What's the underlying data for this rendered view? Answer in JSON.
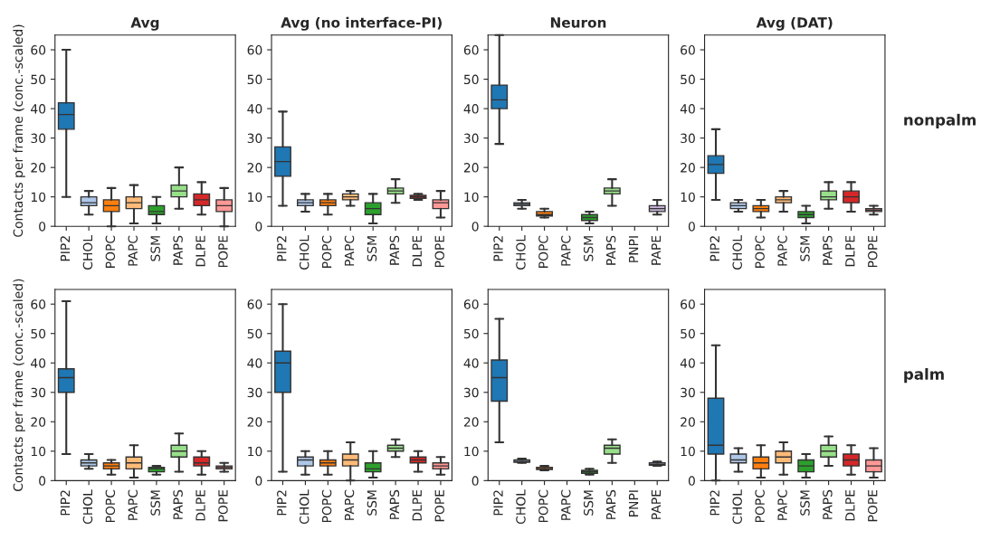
{
  "chart_data": [
    {
      "type": "box",
      "title": "Avg",
      "ylabel": "Contacts per frame (conc.-scaled)",
      "categories": [
        "PIP2",
        "CHOL",
        "POPC",
        "PAPC",
        "SSM",
        "PAPS",
        "DLPE",
        "POPE"
      ],
      "colors": [
        "#1f77b4",
        "#aec7e8",
        "#ff7f0e",
        "#ffbb78",
        "#2ca02c",
        "#98df8a",
        "#d62728",
        "#ff9896"
      ],
      "ylim": [
        0,
        65
      ],
      "yticks": [
        0,
        10,
        20,
        30,
        40,
        50,
        60
      ],
      "boxes": [
        {
          "low": 10,
          "q1": 33,
          "median": 38,
          "q3": 42,
          "high": 60
        },
        {
          "low": 4,
          "q1": 7,
          "median": 8,
          "q3": 10,
          "high": 12
        },
        {
          "low": 0,
          "q1": 5,
          "median": 7,
          "q3": 9,
          "high": 13
        },
        {
          "low": 1,
          "q1": 6,
          "median": 8,
          "q3": 10,
          "high": 14
        },
        {
          "low": 1,
          "q1": 4,
          "median": 5,
          "q3": 7,
          "high": 10
        },
        {
          "low": 6,
          "q1": 10,
          "median": 12,
          "q3": 14,
          "high": 20
        },
        {
          "low": 4,
          "q1": 7,
          "median": 9,
          "q3": 11,
          "high": 15
        },
        {
          "low": 0,
          "q1": 5,
          "median": 7,
          "q3": 9,
          "high": 13
        }
      ]
    },
    {
      "type": "box",
      "title": "Avg (no interface-PI)",
      "categories": [
        "PIP2",
        "CHOL",
        "POPC",
        "PAPC",
        "SSM",
        "PAPS",
        "DLPE",
        "POPE"
      ],
      "colors": [
        "#1f77b4",
        "#aec7e8",
        "#ff7f0e",
        "#ffbb78",
        "#2ca02c",
        "#98df8a",
        "#d62728",
        "#ff9896"
      ],
      "ylim": [
        0,
        65
      ],
      "yticks": [
        0,
        10,
        20,
        30,
        40,
        50,
        60
      ],
      "boxes": [
        {
          "low": 7,
          "q1": 17,
          "median": 22,
          "q3": 27,
          "high": 39
        },
        {
          "low": 5,
          "q1": 7,
          "median": 8,
          "q3": 9,
          "high": 11
        },
        {
          "low": 4,
          "q1": 7,
          "median": 8,
          "q3": 9,
          "high": 11
        },
        {
          "low": 7,
          "q1": 9,
          "median": 10,
          "q3": 11,
          "high": 12
        },
        {
          "low": 1,
          "q1": 4,
          "median": 6,
          "q3": 8,
          "high": 11
        },
        {
          "low": 8,
          "q1": 11,
          "median": 12,
          "q3": 13,
          "high": 16
        },
        {
          "low": 9,
          "q1": 9.5,
          "median": 10,
          "q3": 10.5,
          "high": 11
        },
        {
          "low": 3,
          "q1": 6,
          "median": 8,
          "q3": 9,
          "high": 12
        }
      ]
    },
    {
      "type": "box",
      "title": "Neuron",
      "categories": [
        "PIP2",
        "CHOL",
        "POPC",
        "PAPC",
        "SSM",
        "PAPS",
        "PNPI",
        "PAPE"
      ],
      "colors": [
        "#1f77b4",
        "#aec7e8",
        "#ff7f0e",
        "#ffbb78",
        "#2ca02c",
        "#98df8a",
        "#ff9896",
        "#c5b0d5"
      ],
      "ylim": [
        0,
        65
      ],
      "yticks": [
        0,
        10,
        20,
        30,
        40,
        50,
        60
      ],
      "boxes": [
        {
          "low": 28,
          "q1": 40,
          "median": 43,
          "q3": 48,
          "high": 65
        },
        {
          "low": 6,
          "q1": 7,
          "median": 7.5,
          "q3": 8,
          "high": 9
        },
        {
          "low": 3,
          "q1": 3.5,
          "median": 4,
          "q3": 5,
          "high": 6
        },
        null,
        {
          "low": 1,
          "q1": 2,
          "median": 3,
          "q3": 4,
          "high": 5
        },
        {
          "low": 7,
          "q1": 11,
          "median": 12,
          "q3": 13,
          "high": 16
        },
        null,
        {
          "low": 4,
          "q1": 5,
          "median": 6,
          "q3": 7,
          "high": 9
        }
      ]
    },
    {
      "type": "box",
      "title": "Avg (DAT)",
      "annotations": [
        "nonpalm"
      ],
      "categories": [
        "PIP2",
        "CHOL",
        "POPC",
        "PAPC",
        "SSM",
        "PAPS",
        "DLPE",
        "POPE"
      ],
      "colors": [
        "#1f77b4",
        "#aec7e8",
        "#ff7f0e",
        "#ffbb78",
        "#2ca02c",
        "#98df8a",
        "#d62728",
        "#ff9896"
      ],
      "ylim": [
        0,
        65
      ],
      "yticks": [
        0,
        10,
        20,
        30,
        40,
        50,
        60
      ],
      "boxes": [
        {
          "low": 9,
          "q1": 18,
          "median": 21,
          "q3": 24,
          "high": 33
        },
        {
          "low": 5,
          "q1": 6,
          "median": 7,
          "q3": 8,
          "high": 9
        },
        {
          "low": 3,
          "q1": 5,
          "median": 6,
          "q3": 7,
          "high": 9
        },
        {
          "low": 5,
          "q1": 8,
          "median": 9,
          "q3": 10,
          "high": 12
        },
        {
          "low": 1,
          "q1": 3,
          "median": 4,
          "q3": 5,
          "high": 7
        },
        {
          "low": 6,
          "q1": 9,
          "median": 10,
          "q3": 12,
          "high": 15
        },
        {
          "low": 5,
          "q1": 8,
          "median": 10,
          "q3": 12,
          "high": 15
        },
        {
          "low": 4,
          "q1": 5,
          "median": 5.5,
          "q3": 6,
          "high": 7
        }
      ]
    },
    {
      "type": "box",
      "ylabel": "Contacts per frame (conc.-scaled)",
      "categories": [
        "PIP2",
        "CHOL",
        "POPC",
        "PAPC",
        "SSM",
        "PAPS",
        "DLPE",
        "POPE"
      ],
      "colors": [
        "#1f77b4",
        "#aec7e8",
        "#ff7f0e",
        "#ffbb78",
        "#2ca02c",
        "#98df8a",
        "#d62728",
        "#ff9896"
      ],
      "ylim": [
        0,
        65
      ],
      "yticks": [
        0,
        10,
        20,
        30,
        40,
        50,
        60
      ],
      "boxes": [
        {
          "low": 9,
          "q1": 30,
          "median": 35,
          "q3": 38,
          "high": 61
        },
        {
          "low": 4,
          "q1": 5,
          "median": 6,
          "q3": 7,
          "high": 9
        },
        {
          "low": 2,
          "q1": 4,
          "median": 5,
          "q3": 6,
          "high": 7
        },
        {
          "low": 1,
          "q1": 4,
          "median": 6,
          "q3": 8,
          "high": 12
        },
        {
          "low": 2,
          "q1": 3,
          "median": 4,
          "q3": 4.5,
          "high": 5
        },
        {
          "low": 3,
          "q1": 8,
          "median": 10,
          "q3": 12,
          "high": 16
        },
        {
          "low": 2,
          "q1": 5,
          "median": 6,
          "q3": 8,
          "high": 10
        },
        {
          "low": 3,
          "q1": 4,
          "median": 4.5,
          "q3": 5,
          "high": 6
        }
      ]
    },
    {
      "type": "box",
      "categories": [
        "PIP2",
        "CHOL",
        "POPC",
        "PAPC",
        "SSM",
        "PAPS",
        "DLPE",
        "POPE"
      ],
      "colors": [
        "#1f77b4",
        "#aec7e8",
        "#ff7f0e",
        "#ffbb78",
        "#2ca02c",
        "#98df8a",
        "#d62728",
        "#ff9896"
      ],
      "ylim": [
        0,
        65
      ],
      "yticks": [
        0,
        10,
        20,
        30,
        40,
        50,
        60
      ],
      "boxes": [
        {
          "low": 3,
          "q1": 30,
          "median": 40,
          "q3": 44,
          "high": 60
        },
        {
          "low": 2,
          "q1": 5,
          "median": 7,
          "q3": 8,
          "high": 10
        },
        {
          "low": 2,
          "q1": 5,
          "median": 6,
          "q3": 7,
          "high": 10
        },
        {
          "low": 0,
          "q1": 5,
          "median": 7,
          "q3": 9,
          "high": 13
        },
        {
          "low": 1,
          "q1": 3,
          "median": 4,
          "q3": 6,
          "high": 10
        },
        {
          "low": 8,
          "q1": 10,
          "median": 11,
          "q3": 12,
          "high": 14
        },
        {
          "low": 3,
          "q1": 6,
          "median": 7,
          "q3": 8,
          "high": 10
        },
        {
          "low": 2,
          "q1": 4,
          "median": 5,
          "q3": 6,
          "high": 8
        }
      ]
    },
    {
      "type": "box",
      "categories": [
        "PIP2",
        "CHOL",
        "POPC",
        "PAPC",
        "SSM",
        "PAPS",
        "PNPI",
        "PAPE"
      ],
      "colors": [
        "#1f77b4",
        "#aec7e8",
        "#ff7f0e",
        "#ffbb78",
        "#2ca02c",
        "#98df8a",
        "#ff9896",
        "#c5b0d5"
      ],
      "ylim": [
        0,
        65
      ],
      "yticks": [
        0,
        10,
        20,
        30,
        40,
        50,
        60
      ],
      "boxes": [
        {
          "low": 13,
          "q1": 27,
          "median": 35,
          "q3": 41,
          "high": 55
        },
        {
          "low": 6,
          "q1": 6.2,
          "median": 6.5,
          "q3": 7,
          "high": 7.5
        },
        {
          "low": 3.5,
          "q1": 3.8,
          "median": 4,
          "q3": 4.5,
          "high": 5
        },
        null,
        {
          "low": 2,
          "q1": 2.5,
          "median": 3,
          "q3": 3.5,
          "high": 4
        },
        {
          "low": 6,
          "q1": 9,
          "median": 11,
          "q3": 12,
          "high": 14
        },
        null,
        {
          "low": 5,
          "q1": 5.2,
          "median": 5.5,
          "q3": 6,
          "high": 6.5
        }
      ]
    },
    {
      "type": "box",
      "annotations": [
        "palm"
      ],
      "categories": [
        "PIP2",
        "CHOL",
        "POPC",
        "PAPC",
        "SSM",
        "PAPS",
        "DLPE",
        "POPE"
      ],
      "colors": [
        "#1f77b4",
        "#aec7e8",
        "#ff7f0e",
        "#ffbb78",
        "#2ca02c",
        "#98df8a",
        "#d62728",
        "#ff9896"
      ],
      "ylim": [
        0,
        65
      ],
      "yticks": [
        0,
        10,
        20,
        30,
        40,
        50,
        60
      ],
      "boxes": [
        {
          "low": 0,
          "q1": 9,
          "median": 12,
          "q3": 28,
          "high": 46
        },
        {
          "low": 3,
          "q1": 6,
          "median": 7,
          "q3": 9,
          "high": 11
        },
        {
          "low": 1,
          "q1": 4,
          "median": 6,
          "q3": 8,
          "high": 12
        },
        {
          "low": 2,
          "q1": 6,
          "median": 8,
          "q3": 10,
          "high": 13
        },
        {
          "low": 1,
          "q1": 3,
          "median": 5,
          "q3": 7,
          "high": 9
        },
        {
          "low": 5,
          "q1": 8,
          "median": 10,
          "q3": 12,
          "high": 15
        },
        {
          "low": 2,
          "q1": 5,
          "median": 7,
          "q3": 9,
          "high": 12
        },
        {
          "low": 1,
          "q1": 3,
          "median": 5,
          "q3": 7,
          "high": 11
        }
      ]
    }
  ]
}
